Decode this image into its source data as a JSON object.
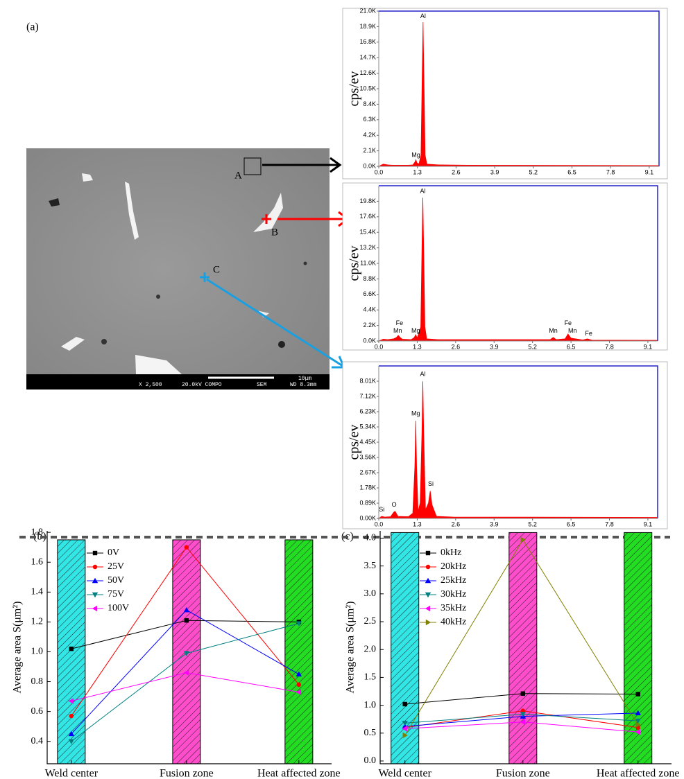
{
  "figure": {
    "panel_labels": [
      "(a)",
      "(b)",
      "(c)"
    ],
    "sem": {
      "points": [
        "A",
        "B",
        "C"
      ],
      "magnification": "X 2,500",
      "voltage": "20.0kV COMPO",
      "mode": "SEM",
      "scale": "10μm",
      "distance": "WD 8.3mm"
    }
  },
  "chart_data": [
    {
      "type": "area",
      "ylabel": "cps/ev",
      "color": "#ff0000",
      "x": [
        0,
        0.15,
        0.3,
        0.45,
        1.0,
        1.15,
        1.22,
        1.25,
        1.28,
        1.35,
        1.42,
        1.46,
        1.49,
        1.52,
        1.56,
        1.62,
        2.0,
        3.0,
        9.4
      ],
      "values": [
        0,
        300,
        200,
        150,
        150,
        200,
        600,
        900,
        500,
        300,
        1500,
        12000,
        19500,
        12000,
        1500,
        300,
        200,
        150,
        100
      ],
      "xlim": [
        0,
        9.43
      ],
      "ylim": [
        0,
        21000
      ],
      "xticks": [
        {
          "value": 0,
          "label": "0.0"
        },
        1.3,
        2.6,
        3.9,
        5.2,
        6.5,
        7.8,
        9.1
      ],
      "yticks": [
        {
          "value": 0,
          "label": "0.0K"
        },
        {
          "value": 2100,
          "label": "2.1K"
        },
        {
          "value": 4200,
          "label": "4.2K"
        },
        {
          "value": 6300,
          "label": "6.3K"
        },
        {
          "value": 8400,
          "label": "8.4K"
        },
        {
          "value": 10500,
          "label": "10.5K"
        },
        {
          "value": 12600,
          "label": "12.6K"
        },
        {
          "value": 14700,
          "label": "14.7K"
        },
        {
          "value": 16800,
          "label": "16.8K"
        },
        {
          "value": 18900,
          "label": "18.9K"
        },
        {
          "value": 21000,
          "label": "21.0K"
        }
      ],
      "annotations": [
        {
          "text": "Al",
          "x": 1.49,
          "y": 20300
        },
        {
          "text": "Mg",
          "x": 1.25,
          "y": 1500
        }
      ]
    },
    {
      "type": "area",
      "ylabel": "cps/ev",
      "color": "#ff0000",
      "x": [
        0,
        0.15,
        0.3,
        0.5,
        0.6,
        0.66,
        0.72,
        0.8,
        1.1,
        1.2,
        1.25,
        1.3,
        1.42,
        1.46,
        1.49,
        1.52,
        1.56,
        1.62,
        2.0,
        5.8,
        5.9,
        6.0,
        6.3,
        6.4,
        6.5,
        6.9,
        7.06,
        7.2,
        9.4
      ],
      "values": [
        0,
        250,
        200,
        300,
        500,
        800,
        500,
        250,
        200,
        500,
        900,
        400,
        2000,
        13000,
        20300,
        13000,
        2000,
        300,
        200,
        200,
        500,
        200,
        300,
        1000,
        400,
        150,
        300,
        120,
        100
      ],
      "xlim": [
        0,
        9.43
      ],
      "ylim": [
        0,
        22000
      ],
      "xticks": [
        {
          "value": 0,
          "label": "0.0"
        },
        1.3,
        2.6,
        3.9,
        5.2,
        6.5,
        7.8,
        9.1
      ],
      "yticks": [
        {
          "value": 0,
          "label": "0.0K"
        },
        {
          "value": 2200,
          "label": "2.2K"
        },
        {
          "value": 4400,
          "label": "4.4K"
        },
        {
          "value": 6600,
          "label": "6.6K"
        },
        {
          "value": 8800,
          "label": "8.8K"
        },
        {
          "value": 11000,
          "label": "11.0K"
        },
        {
          "value": 13200,
          "label": "13.2K"
        },
        {
          "value": 15400,
          "label": "15.4K"
        },
        {
          "value": 17600,
          "label": "17.6K"
        },
        {
          "value": 19800,
          "label": "19.8K"
        }
      ],
      "annotations": [
        {
          "text": "Al",
          "x": 1.49,
          "y": 21200
        },
        {
          "text": "Fe",
          "x": 0.7,
          "y": 2500
        },
        {
          "text": "Mn",
          "x": 0.64,
          "y": 1400
        },
        {
          "text": "Mg",
          "x": 1.25,
          "y": 1400
        },
        {
          "text": "Mn",
          "x": 5.9,
          "y": 1400
        },
        {
          "text": "Fe",
          "x": 6.4,
          "y": 2500
        },
        {
          "text": "Mn",
          "x": 6.55,
          "y": 1400
        },
        {
          "text": "Fe",
          "x": 7.1,
          "y": 1000
        }
      ]
    },
    {
      "type": "area",
      "ylabel": "cps/ev",
      "color": "#ff0000",
      "x": [
        0,
        0.1,
        0.2,
        0.4,
        0.5,
        0.55,
        0.65,
        1.0,
        1.15,
        1.22,
        1.25,
        1.28,
        1.33,
        1.4,
        1.46,
        1.49,
        1.52,
        1.58,
        1.68,
        1.74,
        1.8,
        1.95,
        2.5,
        9.4
      ],
      "values": [
        0,
        120,
        80,
        100,
        350,
        420,
        120,
        100,
        300,
        3000,
        5700,
        3000,
        400,
        900,
        5000,
        8000,
        5000,
        500,
        900,
        1600,
        800,
        120,
        80,
        60
      ],
      "xlim": [
        0,
        9.43
      ],
      "ylim": [
        0,
        8900
      ],
      "xticks": [
        {
          "value": 0,
          "label": "0.0"
        },
        1.3,
        2.6,
        3.9,
        5.2,
        6.5,
        7.8,
        9.1
      ],
      "yticks": [
        {
          "value": 0,
          "label": "0.00K"
        },
        {
          "value": 890,
          "label": "0.89K"
        },
        {
          "value": 1780,
          "label": "1.78K"
        },
        {
          "value": 2670,
          "label": "2.67K"
        },
        {
          "value": 3560,
          "label": "3.56K"
        },
        {
          "value": 4450,
          "label": "4.45K"
        },
        {
          "value": 5340,
          "label": "5.34K"
        },
        {
          "value": 6230,
          "label": "6.23K"
        },
        {
          "value": 7120,
          "label": "7.12K"
        },
        {
          "value": 8010,
          "label": "8.01K"
        }
      ],
      "annotations": [
        {
          "text": "Al",
          "x": 1.49,
          "y": 8400
        },
        {
          "text": "Mg",
          "x": 1.25,
          "y": 6100
        },
        {
          "text": "Si",
          "x": 1.76,
          "y": 2000
        },
        {
          "text": "O",
          "x": 0.52,
          "y": 780
        },
        {
          "text": "Si",
          "x": 0.1,
          "y": 500
        }
      ]
    },
    {
      "type": "line",
      "ylabel": "Average area S(μm²)",
      "categories": [
        "Weld center",
        "Fusion zone",
        "Heat affected zone"
      ],
      "ylim": [
        0.25,
        1.81
      ],
      "yticks": [
        0.4,
        0.6,
        0.8,
        {
          "value": 1,
          "label": "1.0"
        },
        1.2,
        1.4,
        1.6,
        1.8
      ],
      "zone_bars": {
        "colors": [
          "#33e6e6",
          "#ff4dcc",
          "#22dd22"
        ],
        "values": [
          1.75,
          1.75,
          1.75
        ]
      },
      "legend": "upper left",
      "series": [
        {
          "name": "0V",
          "color": "#000000",
          "marker": "square",
          "values": [
            1.02,
            1.21,
            1.2
          ]
        },
        {
          "name": "25V",
          "color": "#ff0000",
          "marker": "circle",
          "values": [
            0.57,
            1.7,
            0.78
          ]
        },
        {
          "name": "50V",
          "color": "#0000ff",
          "marker": "triangle-up",
          "values": [
            0.45,
            1.28,
            0.85
          ]
        },
        {
          "name": "75V",
          "color": "#008080",
          "marker": "triangle-down",
          "values": [
            0.4,
            0.99,
            1.19
          ]
        },
        {
          "name": "100V",
          "color": "#ff00ff",
          "marker": "triangle-left",
          "values": [
            0.67,
            0.86,
            0.73
          ]
        }
      ]
    },
    {
      "type": "line",
      "ylabel": "Average area S(μm²)",
      "categories": [
        "Weld center",
        "Fusion zone",
        "Heat affected zone"
      ],
      "ylim": [
        -0.05,
        4.13
      ],
      "yticks": [
        {
          "value": 0,
          "label": "0.0"
        },
        0.5,
        {
          "value": 1,
          "label": "1.0"
        },
        1.5,
        {
          "value": 2,
          "label": "2.0"
        },
        2.5,
        {
          "value": 3,
          "label": "3.0"
        },
        3.5,
        {
          "value": 4,
          "label": "4.0"
        }
      ],
      "zone_bars": {
        "colors": [
          "#33e6e6",
          "#ff4dcc",
          "#22dd22"
        ],
        "values": [
          4.1,
          4.1,
          4.1
        ]
      },
      "legend": "upper left",
      "series": [
        {
          "name": "0kHz",
          "color": "#000000",
          "marker": "square",
          "values": [
            1.02,
            1.21,
            1.2
          ]
        },
        {
          "name": "20kHz",
          "color": "#ff0000",
          "marker": "circle",
          "values": [
            0.6,
            0.9,
            0.6
          ]
        },
        {
          "name": "25kHz",
          "color": "#0000ff",
          "marker": "triangle-up",
          "values": [
            0.62,
            0.8,
            0.86
          ]
        },
        {
          "name": "30kHz",
          "color": "#008080",
          "marker": "triangle-down",
          "values": [
            0.68,
            0.84,
            0.72
          ]
        },
        {
          "name": "35kHz",
          "color": "#ff00ff",
          "marker": "triangle-left",
          "values": [
            0.58,
            0.7,
            0.52
          ]
        },
        {
          "name": "40kHz",
          "color": "#808000",
          "marker": "triangle-right",
          "values": [
            0.46,
            3.97,
            0.65
          ]
        }
      ]
    }
  ]
}
